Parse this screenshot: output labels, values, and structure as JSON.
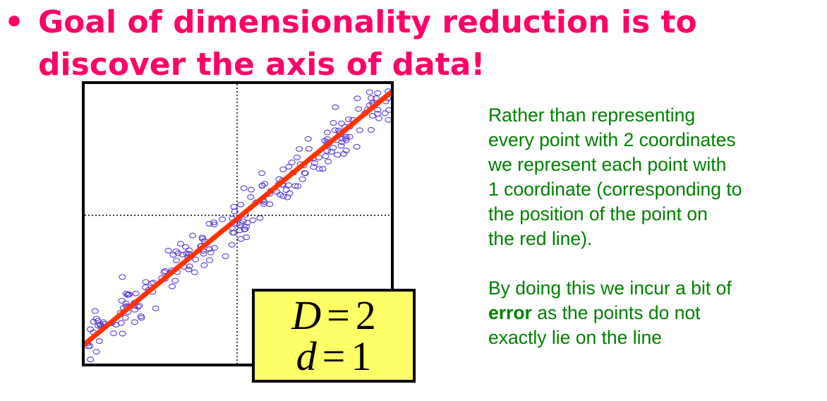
{
  "title": {
    "bullet": "•",
    "line1": "Goal of dimensionality reduction is to",
    "line2": "discover the axis of data!"
  },
  "equation": {
    "D_symbol": "D",
    "D_value": "2",
    "d_symbol": "d",
    "d_value": "1",
    "equals": "="
  },
  "description": {
    "paragraph1": [
      "Rather than representing",
      "every point with 2 coordinates",
      "we represent each point with",
      "1 coordinate (corresponding to",
      "the position of the point on",
      "the red line)."
    ],
    "paragraph2_line1": "By doing this we incur a bit of",
    "paragraph2_bold": "error",
    "paragraph2_line2_rest": " as the points do not",
    "paragraph2_line3": "exactly lie on the line"
  },
  "colors": {
    "title": "#ff0066",
    "text": "#008000",
    "points": "#5a3cd6",
    "line": "#ff3300",
    "legend_bg": "#ffff66"
  },
  "chart_data": {
    "type": "scatter",
    "points_count": 230,
    "fit_line": {
      "from": [
        0,
        0.07
      ],
      "to": [
        1,
        0.97
      ]
    }
  }
}
